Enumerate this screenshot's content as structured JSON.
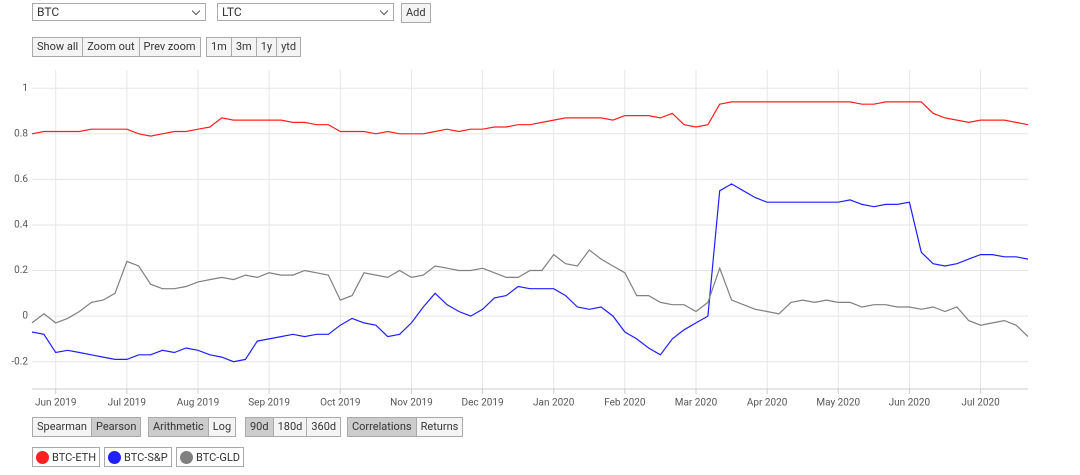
{
  "controls": {
    "pair": [
      "BTC",
      "LTC"
    ],
    "add": "Add",
    "zoom": [
      "Show all",
      "Zoom out",
      "Prev zoom"
    ],
    "ranges": [
      "1m",
      "3m",
      "1y",
      "ytd"
    ],
    "method": [
      "Spearman",
      "Pearson"
    ],
    "scale": [
      "Arithmetic",
      "Log"
    ],
    "window": [
      "90d",
      "180d",
      "360d"
    ],
    "mode": [
      "Correlations",
      "Returns"
    ]
  },
  "chart_data": {
    "type": "line",
    "categories": [
      null,
      null,
      "Jun 2019",
      null,
      null,
      null,
      null,
      null,
      "Jul 2019",
      null,
      null,
      null,
      null,
      null,
      "Aug 2019",
      null,
      null,
      null,
      null,
      null,
      "Sep 2019",
      null,
      null,
      null,
      null,
      null,
      "Oct 2019",
      null,
      null,
      null,
      null,
      null,
      "Nov 2019",
      null,
      null,
      null,
      null,
      null,
      "Dec 2019",
      null,
      null,
      null,
      null,
      null,
      "Jan 2020",
      null,
      null,
      null,
      null,
      null,
      "Feb 2020",
      null,
      null,
      null,
      null,
      null,
      "Mar 2020",
      null,
      null,
      null,
      null,
      null,
      "Apr 2020",
      null,
      null,
      null,
      null,
      null,
      "May 2020",
      null,
      null,
      null,
      null,
      null,
      "Jun 2020",
      null,
      null,
      null,
      null,
      null,
      "Jul 2020",
      null,
      null,
      null,
      null
    ],
    "series": [
      {
        "name": "BTC-ETH",
        "color": "#ff2020",
        "values": [
          0.8,
          0.81,
          0.81,
          0.81,
          0.81,
          0.82,
          0.82,
          0.82,
          0.82,
          0.8,
          0.79,
          0.8,
          0.81,
          0.81,
          0.82,
          0.83,
          0.87,
          0.86,
          0.86,
          0.86,
          0.86,
          0.86,
          0.85,
          0.85,
          0.84,
          0.84,
          0.81,
          0.81,
          0.81,
          0.8,
          0.81,
          0.8,
          0.8,
          0.8,
          0.81,
          0.82,
          0.81,
          0.82,
          0.82,
          0.83,
          0.83,
          0.84,
          0.84,
          0.85,
          0.86,
          0.87,
          0.87,
          0.87,
          0.87,
          0.86,
          0.88,
          0.88,
          0.88,
          0.87,
          0.89,
          0.84,
          0.83,
          0.84,
          0.93,
          0.94,
          0.94,
          0.94,
          0.94,
          0.94,
          0.94,
          0.94,
          0.94,
          0.94,
          0.94,
          0.94,
          0.93,
          0.93,
          0.94,
          0.94,
          0.94,
          0.94,
          0.89,
          0.87,
          0.86,
          0.85,
          0.86,
          0.86,
          0.86,
          0.85,
          0.84
        ]
      },
      {
        "name": "BTC-S&P",
        "color": "#2020ff",
        "values": [
          -0.07,
          -0.08,
          -0.16,
          -0.15,
          -0.16,
          -0.17,
          -0.18,
          -0.19,
          -0.19,
          -0.17,
          -0.17,
          -0.15,
          -0.16,
          -0.14,
          -0.15,
          -0.17,
          -0.18,
          -0.2,
          -0.19,
          -0.11,
          -0.1,
          -0.09,
          -0.08,
          -0.09,
          -0.08,
          -0.08,
          -0.04,
          -0.01,
          -0.03,
          -0.04,
          -0.09,
          -0.08,
          -0.03,
          0.04,
          0.1,
          0.05,
          0.02,
          0.0,
          0.03,
          0.08,
          0.09,
          0.13,
          0.12,
          0.12,
          0.12,
          0.09,
          0.04,
          0.03,
          0.04,
          0.0,
          -0.07,
          -0.1,
          -0.14,
          -0.17,
          -0.1,
          -0.06,
          -0.03,
          0.0,
          0.55,
          0.58,
          0.55,
          0.52,
          0.5,
          0.5,
          0.5,
          0.5,
          0.5,
          0.5,
          0.5,
          0.51,
          0.49,
          0.48,
          0.49,
          0.49,
          0.5,
          0.28,
          0.23,
          0.22,
          0.23,
          0.25,
          0.27,
          0.27,
          0.26,
          0.26,
          0.25
        ]
      },
      {
        "name": "BTC-GLD",
        "color": "#808080",
        "values": [
          -0.03,
          0.01,
          -0.03,
          -0.01,
          0.02,
          0.06,
          0.07,
          0.1,
          0.24,
          0.22,
          0.14,
          0.12,
          0.12,
          0.13,
          0.15,
          0.16,
          0.17,
          0.16,
          0.18,
          0.17,
          0.19,
          0.18,
          0.18,
          0.2,
          0.19,
          0.18,
          0.07,
          0.09,
          0.19,
          0.18,
          0.17,
          0.2,
          0.17,
          0.18,
          0.22,
          0.21,
          0.2,
          0.2,
          0.21,
          0.19,
          0.17,
          0.17,
          0.2,
          0.2,
          0.27,
          0.23,
          0.22,
          0.29,
          0.25,
          0.22,
          0.19,
          0.09,
          0.09,
          0.06,
          0.05,
          0.05,
          0.02,
          0.06,
          0.21,
          0.07,
          0.05,
          0.03,
          0.02,
          0.01,
          0.06,
          0.07,
          0.06,
          0.07,
          0.06,
          0.06,
          0.04,
          0.05,
          0.05,
          0.04,
          0.04,
          0.03,
          0.04,
          0.02,
          0.04,
          -0.02,
          -0.04,
          -0.03,
          -0.02,
          -0.04,
          -0.09
        ]
      }
    ],
    "ylim": [
      -0.32,
      1.08
    ],
    "yticks": [
      -0.2,
      0,
      0.2,
      0.4,
      0.6,
      0.8,
      1
    ],
    "grid": true
  }
}
